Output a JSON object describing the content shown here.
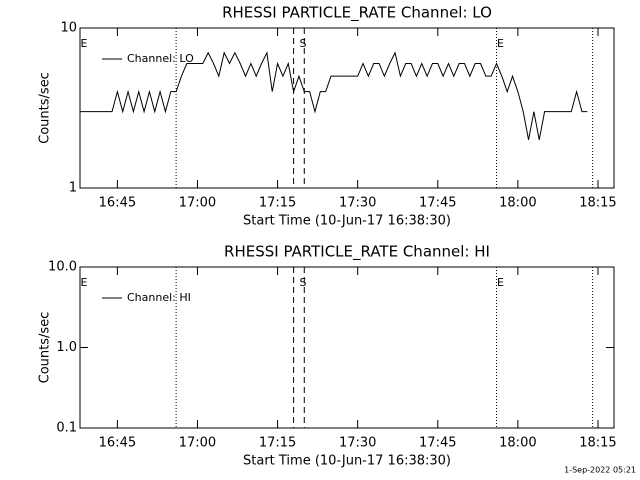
{
  "chart_data": [
    {
      "type": "line",
      "title": "RHESSI PARTICLE_RATE Channel: LO",
      "xlabel": "Start Time (10-Jun-17 16:38:30)",
      "ylabel": "Counts/sec",
      "log_y": true,
      "ylim": [
        1,
        10
      ],
      "yticks": [
        1,
        10
      ],
      "xlim": [
        "16:38",
        "18:18"
      ],
      "xticks": [
        "16:45",
        "17:00",
        "17:15",
        "17:30",
        "17:45",
        "18:00",
        "18:15"
      ],
      "x": [
        "16:38",
        "16:39",
        "16:40",
        "16:41",
        "16:42",
        "16:43",
        "16:44",
        "16:45",
        "16:46",
        "16:47",
        "16:48",
        "16:49",
        "16:50",
        "16:51",
        "16:52",
        "16:53",
        "16:54",
        "16:55",
        "16:56",
        "16:57",
        "16:58",
        "16:59",
        "17:00",
        "17:01",
        "17:02",
        "17:03",
        "17:04",
        "17:05",
        "17:06",
        "17:07",
        "17:08",
        "17:09",
        "17:10",
        "17:11",
        "17:12",
        "17:13",
        "17:14",
        "17:15",
        "17:16",
        "17:17",
        "17:18",
        "17:19",
        "17:20",
        "17:21",
        "17:22",
        "17:23",
        "17:24",
        "17:25",
        "17:26",
        "17:27",
        "17:28",
        "17:29",
        "17:30",
        "17:31",
        "17:32",
        "17:33",
        "17:34",
        "17:35",
        "17:36",
        "17:37",
        "17:38",
        "17:39",
        "17:40",
        "17:41",
        "17:42",
        "17:43",
        "17:44",
        "17:45",
        "17:46",
        "17:47",
        "17:48",
        "17:49",
        "17:50",
        "17:51",
        "17:52",
        "17:53",
        "17:54",
        "17:55",
        "17:56",
        "17:57",
        "17:58",
        "17:59",
        "18:00",
        "18:01",
        "18:02",
        "18:03",
        "18:04",
        "18:05",
        "18:06",
        "18:07",
        "18:08",
        "18:09",
        "18:10",
        "18:11",
        "18:12",
        "18:13"
      ],
      "series": [
        {
          "name": "Channel: LO",
          "color": "#000000",
          "values": [
            3,
            3,
            3,
            3,
            3,
            3,
            3,
            4,
            3,
            4,
            3,
            4,
            3,
            4,
            3,
            4,
            3,
            4,
            4,
            5,
            6,
            6,
            6,
            6,
            7,
            6,
            5,
            7,
            6,
            7,
            6,
            5,
            6,
            5,
            6,
            7,
            4,
            6,
            5,
            6,
            4,
            5,
            4,
            4,
            3,
            4,
            4,
            5,
            5,
            5,
            5,
            5,
            5,
            6,
            5,
            6,
            6,
            5,
            6,
            7,
            5,
            6,
            6,
            5,
            6,
            5,
            6,
            6,
            5,
            6,
            5,
            6,
            6,
            5,
            6,
            6,
            5,
            5,
            6,
            5,
            4,
            5,
            4,
            3,
            2,
            3,
            2,
            3,
            3,
            3,
            3,
            3,
            3,
            4,
            3,
            3
          ]
        }
      ],
      "markers": [
        {
          "label": "E",
          "time": "16:38"
        },
        {
          "label": "S",
          "time": "17:19"
        },
        {
          "label": "E",
          "time": "17:56"
        }
      ],
      "dotted_lines": [
        "16:56",
        "17:56",
        "18:14"
      ],
      "dashed_lines": [
        "17:18",
        "17:20"
      ]
    },
    {
      "type": "line",
      "title": "RHESSI PARTICLE_RATE Channel: HI",
      "xlabel": "Start Time (10-Jun-17 16:38:30)",
      "ylabel": "Counts/sec",
      "log_y": true,
      "ylim": [
        0.1,
        10
      ],
      "yticks": [
        0.1,
        {
          "value": 1,
          "label": "1.0"
        },
        {
          "value": 10,
          "label": "10.0"
        }
      ],
      "xlim": [
        "16:38",
        "18:18"
      ],
      "xticks": [
        "16:45",
        "17:00",
        "17:15",
        "17:30",
        "17:45",
        "18:00",
        "18:15"
      ],
      "x": [],
      "series": [
        {
          "name": "Channel: HI",
          "color": "#000000",
          "values": []
        }
      ],
      "markers": [
        {
          "label": "E",
          "time": "16:38"
        },
        {
          "label": "S",
          "time": "17:19"
        },
        {
          "label": "E",
          "time": "17:56"
        }
      ],
      "dotted_lines": [
        "16:56",
        "17:56",
        "18:14"
      ],
      "dashed_lines": [
        "17:18",
        "17:20"
      ]
    }
  ],
  "footer": "1-Sep-2022 05:21"
}
